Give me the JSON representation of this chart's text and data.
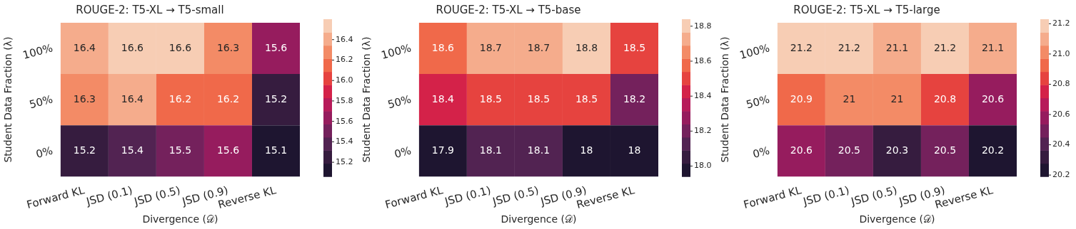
{
  "chart_data": [
    {
      "type": "heatmap",
      "title": "ROUGE-2: T5-XL → T5-small",
      "xlabel": "Divergence (𝒟)",
      "ylabel": "Student Data Fraction (λ)",
      "categories": [
        "Forward KL",
        "JSD (0.1)",
        "JSD (0.5)",
        "JSD (0.9)",
        "Reverse KL"
      ],
      "y_categories": [
        "100%",
        "50%",
        "0%"
      ],
      "cells": [
        [
          16.4,
          16.6,
          16.6,
          16.3,
          15.6
        ],
        [
          16.3,
          16.4,
          16.2,
          16.2,
          15.2
        ],
        [
          15.2,
          15.4,
          15.5,
          15.6,
          15.1
        ]
      ],
      "data_labels": true,
      "clim": [
        15.06,
        16.6
      ],
      "cticks": [
        15.2,
        {
          "value": 15.4,
          "label": "15.4"
        },
        {
          "value": 15.6,
          "label": "15.6"
        },
        {
          "value": 15.8,
          "label": "15.8"
        },
        {
          "value": 16.0,
          "label": "16.0"
        },
        {
          "value": 16.2,
          "label": "16.2"
        },
        {
          "value": 16.4,
          "label": "16.4"
        }
      ]
    },
    {
      "type": "heatmap",
      "title": "ROUGE-2: T5-XL → T5-base",
      "xlabel": "Divergence (𝒟)",
      "ylabel": "Student Data Fraction (λ)",
      "categories": [
        "Forward KL",
        "JSD (0.1)",
        "JSD (0.5)",
        "JSD (0.9)",
        "Reverse KL"
      ],
      "y_categories": [
        "100%",
        "50%",
        "0%"
      ],
      "cells": [
        [
          18.6,
          18.7,
          18.7,
          18.8,
          18.5
        ],
        [
          18.4,
          18.5,
          18.5,
          18.5,
          18.2
        ],
        [
          17.9,
          18.1,
          18.1,
          18,
          18
        ]
      ],
      "data_labels": true,
      "clim": [
        17.94,
        18.84
      ],
      "cticks": [
        {
          "value": 18.0,
          "label": "18.0"
        },
        18.2,
        18.4,
        18.6,
        18.8
      ]
    },
    {
      "type": "heatmap",
      "title": "ROUGE-2: T5-XL → T5-large",
      "xlabel": "Divergence (𝒟)",
      "ylabel": "Student Data Fraction (λ)",
      "categories": [
        "Forward KL",
        "JSD (0.1)",
        "JSD (0.5)",
        "JSD (0.9)",
        "Reverse KL"
      ],
      "y_categories": [
        "100%",
        "50%",
        "0%"
      ],
      "cells": [
        [
          21.2,
          21.2,
          21.1,
          21.2,
          21.1
        ],
        [
          20.9,
          21,
          21,
          20.8,
          20.6
        ],
        [
          20.6,
          20.5,
          20.3,
          20.5,
          20.2
        ]
      ],
      "data_labels": true,
      "clim": [
        20.19,
        21.23
      ],
      "cticks": [
        20.2,
        20.4,
        20.6,
        20.8,
        {
          "value": 21.0,
          "label": "21.0"
        },
        21.2
      ]
    }
  ]
}
